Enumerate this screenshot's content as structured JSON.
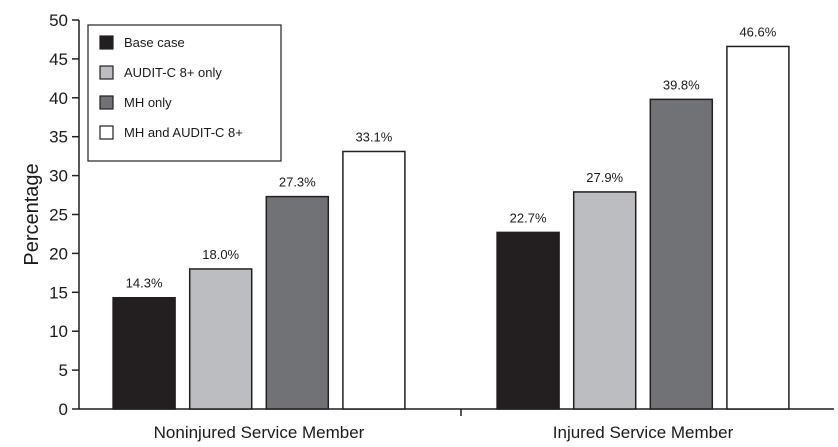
{
  "chart_data": {
    "type": "bar",
    "title": "",
    "xlabel": "",
    "ylabel": "Percentage",
    "ylim": [
      0,
      50
    ],
    "yticks": [
      0,
      5,
      10,
      15,
      20,
      25,
      30,
      35,
      40,
      45,
      50
    ],
    "grid": false,
    "legend_position": "top-left",
    "categories": [
      "Noninjured Service Member",
      "Injured Service Member"
    ],
    "series": [
      {
        "name": "Base case",
        "color": "#231f20",
        "values": [
          14.3,
          22.7
        ],
        "labels": [
          "14.3%",
          "22.7%"
        ]
      },
      {
        "name": "AUDIT-C 8+ only",
        "color": "#bcbdc0",
        "values": [
          18.0,
          27.9
        ],
        "labels": [
          "18.0%",
          "27.9%"
        ]
      },
      {
        "name": "MH only",
        "color": "#717275",
        "values": [
          27.3,
          39.8
        ],
        "labels": [
          "27.3%",
          "39.8%"
        ]
      },
      {
        "name": "MH and AUDIT-C 8+",
        "color": "#ffffff",
        "values": [
          33.1,
          46.6
        ],
        "labels": [
          "33.1%",
          "46.6%"
        ]
      }
    ]
  }
}
